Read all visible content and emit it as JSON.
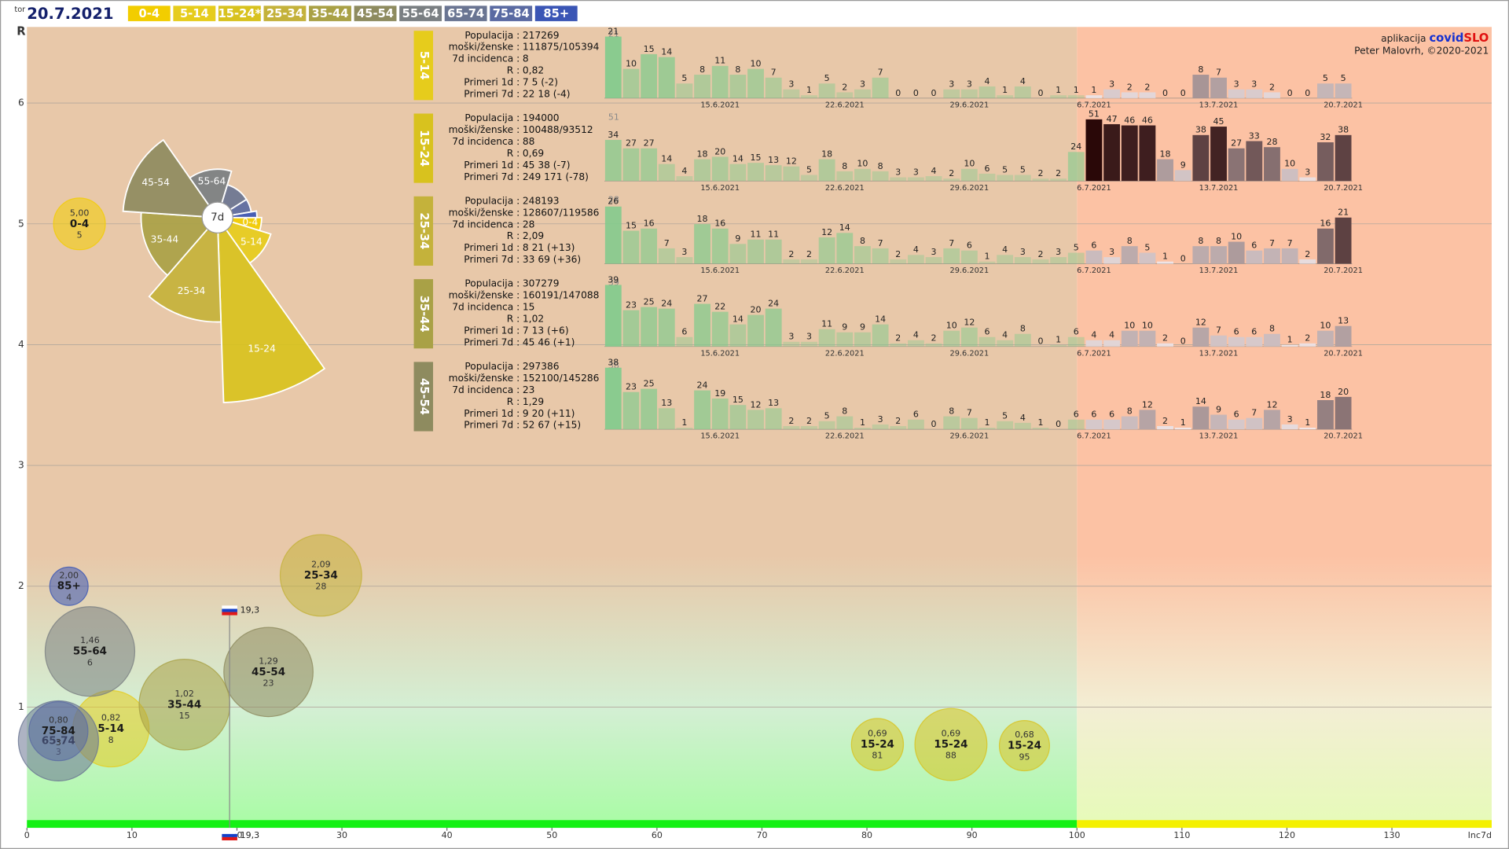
{
  "header": {
    "weekday": "tor",
    "date": "20.7.2021"
  },
  "brand": {
    "prefix": "aplikacija",
    "covid": "covid",
    "slo": "SLO",
    "author": "Peter Malovrh, ©2020-2021"
  },
  "chart_data": [
    {
      "type": "bubble",
      "xlabel": "Inc7d",
      "ylabel": "R",
      "xlim": [
        0,
        139.5
      ],
      "xticks": [
        0,
        10,
        20,
        30,
        40,
        50,
        60,
        70,
        80,
        90,
        100,
        110,
        120,
        130
      ],
      "ylim": [
        0,
        6.63
      ],
      "yticks": [
        1,
        2,
        3,
        4,
        5,
        6
      ],
      "grid": true,
      "x_threshold": 100,
      "polar_label": "7d",
      "legend": [
        {
          "label": "0-4",
          "color": "#f2cd00"
        },
        {
          "label": "5-14",
          "color": "#e6cc1c"
        },
        {
          "label": "15-24*",
          "color": "#d8c21e"
        },
        {
          "label": "25-34",
          "color": "#c4b23b"
        },
        {
          "label": "35-44",
          "color": "#a9a146"
        },
        {
          "label": "45-54",
          "color": "#8e8b5f"
        },
        {
          "label": "55-64",
          "color": "#7a7f82"
        },
        {
          "label": "65-74",
          "color": "#6a7592"
        },
        {
          "label": "75-84",
          "color": "#5a6aa2"
        },
        {
          "label": "85+",
          "color": "#3a55b5"
        }
      ],
      "series": [
        {
          "name": "0-4",
          "color": "#f2cd00",
          "x": [
            5
          ],
          "values": [
            5.0
          ],
          "value_labels": [
            "5,00"
          ],
          "sizes": [
            100000
          ]
        },
        {
          "name": "5-14",
          "color": "#e6cc1c",
          "x": [
            8
          ],
          "values": [
            0.82
          ],
          "value_labels": [
            "0,82"
          ],
          "sizes": [
            217269
          ]
        },
        {
          "name": "15-24",
          "color": "#d8c21e",
          "x": [
            81,
            95,
            88
          ],
          "values": [
            0.69,
            0.68,
            0.69
          ],
          "value_labels": [
            "0,69",
            "0,68",
            "0,69"
          ],
          "sizes": [
            101000,
            94000,
            194000
          ]
        },
        {
          "name": "25-34",
          "color": "#c4b23b",
          "x": [
            28
          ],
          "values": [
            2.09
          ],
          "value_labels": [
            "2,09"
          ],
          "sizes": [
            248193
          ]
        },
        {
          "name": "35-44",
          "color": "#a9a146",
          "x": [
            15
          ],
          "values": [
            1.02
          ],
          "value_labels": [
            "1,02"
          ],
          "sizes": [
            307279
          ]
        },
        {
          "name": "45-54",
          "color": "#8e8b5f",
          "x": [
            23
          ],
          "values": [
            1.29
          ],
          "value_labels": [
            "1,29"
          ],
          "sizes": [
            297386
          ]
        },
        {
          "name": "55-64",
          "color": "#7a7f82",
          "x": [
            6
          ],
          "values": [
            1.46
          ],
          "value_labels": [
            "1,46"
          ],
          "sizes": [
            300000
          ]
        },
        {
          "name": "65-74",
          "color": "#6a7592",
          "x": [
            3
          ],
          "values": [
            0.72
          ],
          "value_labels": [
            null
          ],
          "sizes": [
            240000
          ]
        },
        {
          "name": "75-84",
          "color": "#5a6aa2",
          "x": [
            3
          ],
          "values": [
            0.8
          ],
          "value_labels": [
            "0,80"
          ],
          "sizes": [
            130000
          ]
        },
        {
          "name": "85+",
          "color": "#3a55b5",
          "x": [
            4
          ],
          "values": [
            2.0
          ],
          "value_labels": [
            "2,00"
          ],
          "sizes": [
            55000
          ]
        }
      ],
      "national": {
        "x": 19.3,
        "x_label": "19,3",
        "y": 1.8
      }
    },
    {
      "type": "bar",
      "title": "5-14",
      "color": "#e6cc1c",
      "bar_colors": {
        "below": "#7fcb8c",
        "above_low": "#f6ecee",
        "above_high": "#2a0808"
      },
      "stats": [
        {
          "label": "Populacija :",
          "value": 217269
        },
        {
          "label": "moški/ženske :",
          "value": "111875/105394"
        },
        {
          "label": "7d incidenca :",
          "value": 8
        },
        {
          "label": "R :",
          "value": "0,82"
        },
        {
          "label": "Primeri 1d :",
          "value": "7 5 (-2)"
        },
        {
          "label": "Primeri 7d :",
          "value": "22 18 (-4)"
        }
      ],
      "categories": [
        null,
        null,
        null,
        null,
        null,
        null,
        "15.6.2021",
        null,
        null,
        null,
        null,
        null,
        null,
        "22.6.2021",
        null,
        null,
        null,
        null,
        null,
        null,
        "29.6.2021",
        null,
        null,
        null,
        null,
        null,
        null,
        "6.7.2021",
        null,
        null,
        null,
        null,
        null,
        null,
        "13.7.2021",
        null,
        null,
        null,
        null,
        null,
        null,
        "20.7.2021"
      ],
      "values": [
        21,
        10,
        15,
        14,
        5,
        8,
        11,
        8,
        10,
        7,
        3,
        1,
        5,
        2,
        3,
        7,
        0,
        0,
        0,
        3,
        3,
        4,
        1,
        4,
        0,
        1,
        1,
        1,
        3,
        2,
        2,
        0,
        0,
        8,
        7,
        3,
        3,
        2,
        0,
        0,
        5,
        5
      ],
      "ylim": [
        0,
        21
      ]
    },
    {
      "type": "bar",
      "title": "15-24",
      "color": "#d8c21e",
      "bar_colors": {
        "below": "#7fcb8c",
        "above_low": "#f6ecee",
        "above_high": "#2a0808"
      },
      "stats": [
        {
          "label": "Populacija :",
          "value": 194000
        },
        {
          "label": "moški/ženske :",
          "value": "100488/93512"
        },
        {
          "label": "7d incidenca :",
          "value": 88
        },
        {
          "label": "R :",
          "value": "0,69"
        },
        {
          "label": "Primeri 1d :",
          "value": "45 38 (-7)"
        },
        {
          "label": "Primeri 7d :",
          "value": "249 171 (-78)"
        }
      ],
      "categories": [
        null,
        null,
        null,
        null,
        null,
        null,
        "15.6.2021",
        null,
        null,
        null,
        null,
        null,
        null,
        "22.6.2021",
        null,
        null,
        null,
        null,
        null,
        null,
        "29.6.2021",
        null,
        null,
        null,
        null,
        null,
        null,
        "6.7.2021",
        null,
        null,
        null,
        null,
        null,
        null,
        "13.7.2021",
        null,
        null,
        null,
        null,
        null,
        null,
        "20.7.2021"
      ],
      "values": [
        34,
        27,
        27,
        14,
        4,
        18,
        20,
        14,
        15,
        13,
        12,
        5,
        18,
        8,
        10,
        8,
        3,
        3,
        4,
        2,
        10,
        6,
        5,
        5,
        2,
        2,
        24,
        51,
        47,
        46,
        46,
        18,
        9,
        38,
        45,
        27,
        33,
        28,
        10,
        3,
        32,
        38
      ],
      "ylim": [
        0,
        51
      ]
    },
    {
      "type": "bar",
      "title": "25-34",
      "color": "#c4b23b",
      "bar_colors": {
        "below": "#7fcb8c",
        "above_low": "#f6ecee",
        "above_high": "#2a0808"
      },
      "stats": [
        {
          "label": "Populacija :",
          "value": 248193
        },
        {
          "label": "moški/ženske :",
          "value": "128607/119586"
        },
        {
          "label": "7d incidenca :",
          "value": 28
        },
        {
          "label": "R :",
          "value": "2,09"
        },
        {
          "label": "Primeri 1d :",
          "value": "8 21 (+13)"
        },
        {
          "label": "Primeri 7d :",
          "value": "33 69 (+36)"
        }
      ],
      "categories": [
        null,
        null,
        null,
        null,
        null,
        null,
        "15.6.2021",
        null,
        null,
        null,
        null,
        null,
        null,
        "22.6.2021",
        null,
        null,
        null,
        null,
        null,
        null,
        "29.6.2021",
        null,
        null,
        null,
        null,
        null,
        null,
        "6.7.2021",
        null,
        null,
        null,
        null,
        null,
        null,
        "13.7.2021",
        null,
        null,
        null,
        null,
        null,
        null,
        "20.7.2021"
      ],
      "values": [
        26,
        15,
        16,
        7,
        3,
        18,
        16,
        9,
        11,
        11,
        2,
        2,
        12,
        14,
        8,
        7,
        2,
        4,
        3,
        7,
        6,
        1,
        4,
        3,
        2,
        3,
        5,
        6,
        3,
        8,
        5,
        1,
        0,
        8,
        8,
        10,
        6,
        7,
        7,
        2,
        16,
        21
      ],
      "ylim": [
        0,
        28
      ]
    },
    {
      "type": "bar",
      "title": "35-44",
      "color": "#a9a146",
      "bar_colors": {
        "below": "#7fcb8c",
        "above_low": "#f6ecee",
        "above_high": "#2a0808"
      },
      "stats": [
        {
          "label": "Populacija :",
          "value": 307279
        },
        {
          "label": "moški/ženske :",
          "value": "160191/147088"
        },
        {
          "label": "7d incidenca :",
          "value": 15
        },
        {
          "label": "R :",
          "value": "1,02"
        },
        {
          "label": "Primeri 1d :",
          "value": "7 13 (+6)"
        },
        {
          "label": "Primeri 7d :",
          "value": "45 46 (+1)"
        }
      ],
      "categories": [
        null,
        null,
        null,
        null,
        null,
        null,
        "15.6.2021",
        null,
        null,
        null,
        null,
        null,
        null,
        "22.6.2021",
        null,
        null,
        null,
        null,
        null,
        null,
        "29.6.2021",
        null,
        null,
        null,
        null,
        null,
        null,
        "6.7.2021",
        null,
        null,
        null,
        null,
        null,
        null,
        "13.7.2021",
        null,
        null,
        null,
        null,
        null,
        null,
        "20.7.2021"
      ],
      "values": [
        39,
        23,
        25,
        24,
        6,
        27,
        22,
        14,
        20,
        24,
        3,
        3,
        11,
        9,
        9,
        14,
        2,
        4,
        2,
        10,
        12,
        6,
        4,
        8,
        0,
        1,
        6,
        4,
        4,
        10,
        10,
        2,
        0,
        12,
        7,
        6,
        6,
        8,
        1,
        2,
        10,
        13
      ],
      "ylim": [
        0,
        39
      ]
    },
    {
      "type": "bar",
      "title": "45-54",
      "color": "#8e8b5f",
      "bar_colors": {
        "below": "#7fcb8c",
        "above_low": "#f6ecee",
        "above_high": "#2a0808"
      },
      "stats": [
        {
          "label": "Populacija :",
          "value": 297386
        },
        {
          "label": "moški/ženske :",
          "value": "152100/145286"
        },
        {
          "label": "7d incidenca :",
          "value": 23
        },
        {
          "label": "R :",
          "value": "1,29"
        },
        {
          "label": "Primeri 1d :",
          "value": "9 20 (+11)"
        },
        {
          "label": "Primeri 7d :",
          "value": "52 67 (+15)"
        }
      ],
      "categories": [
        null,
        null,
        null,
        null,
        null,
        null,
        "15.6.2021",
        null,
        null,
        null,
        null,
        null,
        null,
        "22.6.2021",
        null,
        null,
        null,
        null,
        null,
        null,
        "29.6.2021",
        null,
        null,
        null,
        null,
        null,
        null,
        "6.7.2021",
        null,
        null,
        null,
        null,
        null,
        null,
        "13.7.2021",
        null,
        null,
        null,
        null,
        null,
        null,
        "20.7.2021"
      ],
      "values": [
        38,
        23,
        25,
        13,
        1,
        24,
        19,
        15,
        12,
        13,
        2,
        2,
        5,
        8,
        1,
        3,
        2,
        6,
        0,
        8,
        7,
        1,
        5,
        4,
        1,
        0,
        6,
        6,
        6,
        8,
        12,
        2,
        1,
        14,
        9,
        6,
        7,
        12,
        3,
        1,
        18,
        20
      ],
      "ylim": [
        0,
        38
      ]
    }
  ]
}
